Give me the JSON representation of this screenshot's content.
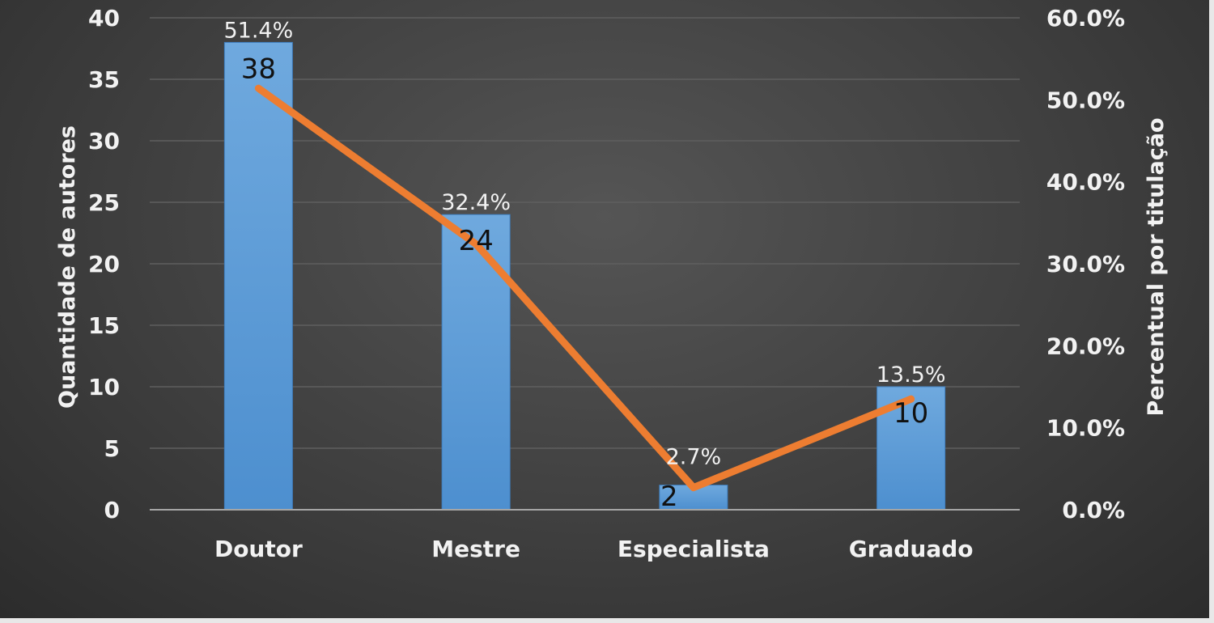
{
  "chart_data": {
    "type": "bar",
    "title": "",
    "categories": [
      "Doutor",
      "Mestre",
      "Especialista",
      "Graduado"
    ],
    "series": [
      {
        "type": "bar",
        "axis": "left",
        "values": [
          38,
          24,
          2,
          10
        ],
        "value_labels": [
          "38",
          "24",
          "2",
          "10"
        ],
        "color": "#5b9bd5"
      },
      {
        "type": "line",
        "axis": "right",
        "values": [
          51.4,
          32.4,
          2.7,
          13.5
        ],
        "value_labels": [
          "51.4%",
          "32.4%",
          "2.7%",
          "13.5%"
        ],
        "color": "#ed7d31"
      }
    ],
    "ylabel": "Quantidade de autores",
    "y2label": "Percentual por titulação",
    "ylim": [
      0,
      40
    ],
    "y2lim": [
      0,
      60
    ],
    "yticks": [
      "0",
      "5",
      "10",
      "15",
      "20",
      "25",
      "30",
      "35",
      "40"
    ],
    "y2ticks": [
      "0.0%",
      "10.0%",
      "20.0%",
      "30.0%",
      "40.0%",
      "50.0%",
      "60.0%"
    ],
    "grid": true,
    "legend": "none"
  }
}
